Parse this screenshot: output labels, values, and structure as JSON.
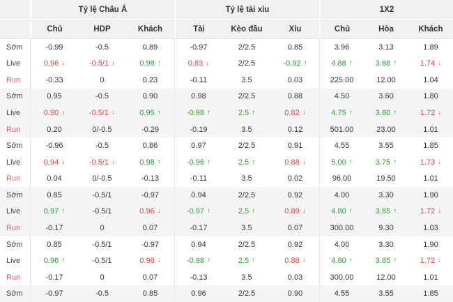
{
  "colors": {
    "red": "#e8453c",
    "green": "#28a42c",
    "header_bg": "#f0f0f0",
    "alt_row_bg": "#f5f5f5",
    "divider": "#e8e8e8",
    "text": "#333333",
    "run_label": "#e06363"
  },
  "header": {
    "groups": [
      {
        "label": "Tỷ lệ Châu Á",
        "cols": [
          "Chủ",
          "HDP",
          "Khách"
        ]
      },
      {
        "label": "Tỷ lệ tài xỉu",
        "cols": [
          "Tài",
          "Kèo đầu",
          "Xỉu"
        ]
      },
      {
        "label": "1X2",
        "cols": [
          "Chủ",
          "Hòa",
          "Khách"
        ]
      }
    ]
  },
  "rows": [
    {
      "label": "Sớm",
      "shaded": false,
      "cells": [
        {
          "t": "-0.99"
        },
        {
          "t": "-0.5"
        },
        {
          "t": "0.89"
        },
        {
          "t": "-0.97"
        },
        {
          "t": "2/2.5"
        },
        {
          "t": "0.85"
        },
        {
          "t": "3.96"
        },
        {
          "t": "3.13"
        },
        {
          "t": "1.89"
        }
      ]
    },
    {
      "label": "Live",
      "shaded": false,
      "cells": [
        {
          "t": "0.96",
          "c": "red",
          "a": "down"
        },
        {
          "t": "-0.5/1",
          "c": "red",
          "a": "down"
        },
        {
          "t": "0.98",
          "c": "green",
          "a": "up"
        },
        {
          "t": "0.83",
          "c": "red",
          "a": "down"
        },
        {
          "t": "2/2.5"
        },
        {
          "t": "-0.92",
          "c": "green",
          "a": "up"
        },
        {
          "t": "4.88",
          "c": "green",
          "a": "up"
        },
        {
          "t": "3.68",
          "c": "green",
          "a": "up"
        },
        {
          "t": "1.74",
          "c": "red",
          "a": "down"
        }
      ]
    },
    {
      "label": "Run",
      "shaded": false,
      "cells": [
        {
          "t": "-0.33"
        },
        {
          "t": "0"
        },
        {
          "t": "0.23"
        },
        {
          "t": "-0.11"
        },
        {
          "t": "3.5"
        },
        {
          "t": "0.03"
        },
        {
          "t": "225.00"
        },
        {
          "t": "12.00"
        },
        {
          "t": "1.04"
        }
      ]
    },
    {
      "label": "Sớm",
      "shaded": true,
      "cells": [
        {
          "t": "0.95"
        },
        {
          "t": "-0.5"
        },
        {
          "t": "0.90"
        },
        {
          "t": "0.98"
        },
        {
          "t": "2/2.5"
        },
        {
          "t": "0.88"
        },
        {
          "t": "4.50"
        },
        {
          "t": "3.60"
        },
        {
          "t": "1.80"
        }
      ]
    },
    {
      "label": "Live",
      "shaded": true,
      "cells": [
        {
          "t": "0.90",
          "c": "red",
          "a": "down"
        },
        {
          "t": "-0.5/1",
          "c": "red",
          "a": "down"
        },
        {
          "t": "0.95",
          "c": "green",
          "a": "up"
        },
        {
          "t": "-0.98",
          "c": "green",
          "a": "up"
        },
        {
          "t": "2.5",
          "c": "green",
          "a": "up"
        },
        {
          "t": "0.82",
          "c": "red",
          "a": "down"
        },
        {
          "t": "4.75",
          "c": "green",
          "a": "up"
        },
        {
          "t": "3.80",
          "c": "green",
          "a": "up"
        },
        {
          "t": "1.72",
          "c": "red",
          "a": "down"
        }
      ]
    },
    {
      "label": "Run",
      "shaded": true,
      "cells": [
        {
          "t": "0.20"
        },
        {
          "t": "0/-0.5"
        },
        {
          "t": "-0.29"
        },
        {
          "t": "-0.19"
        },
        {
          "t": "3.5"
        },
        {
          "t": "0.12"
        },
        {
          "t": "501.00"
        },
        {
          "t": "23.00"
        },
        {
          "t": "1.01"
        }
      ]
    },
    {
      "label": "Sớm",
      "shaded": false,
      "cells": [
        {
          "t": "-0.96"
        },
        {
          "t": "-0.5"
        },
        {
          "t": "0.86"
        },
        {
          "t": "0.97"
        },
        {
          "t": "2/2.5"
        },
        {
          "t": "0.91"
        },
        {
          "t": "4.55"
        },
        {
          "t": "3.55"
        },
        {
          "t": "1.85"
        }
      ]
    },
    {
      "label": "Live",
      "shaded": false,
      "cells": [
        {
          "t": "0.94",
          "c": "red",
          "a": "down"
        },
        {
          "t": "-0.5/1",
          "c": "red",
          "a": "down"
        },
        {
          "t": "0.98",
          "c": "green",
          "a": "up"
        },
        {
          "t": "-0.96",
          "c": "green",
          "a": "up"
        },
        {
          "t": "2.5",
          "c": "green",
          "a": "up"
        },
        {
          "t": "0.88",
          "c": "red",
          "a": "down"
        },
        {
          "t": "5.00",
          "c": "green",
          "a": "up"
        },
        {
          "t": "3.75",
          "c": "green",
          "a": "up"
        },
        {
          "t": "1.73",
          "c": "red",
          "a": "down"
        }
      ]
    },
    {
      "label": "Run",
      "shaded": false,
      "cells": [
        {
          "t": "0.04"
        },
        {
          "t": "0/-0.5"
        },
        {
          "t": "-0.13"
        },
        {
          "t": "-0.11"
        },
        {
          "t": "3.5"
        },
        {
          "t": "0.02"
        },
        {
          "t": "96.00"
        },
        {
          "t": "19.50"
        },
        {
          "t": "1.01"
        }
      ]
    },
    {
      "label": "Sớm",
      "shaded": true,
      "cells": [
        {
          "t": "0.85"
        },
        {
          "t": "-0.5/1"
        },
        {
          "t": "-0.97"
        },
        {
          "t": "0.94"
        },
        {
          "t": "2/2.5"
        },
        {
          "t": "0.92"
        },
        {
          "t": "4.00"
        },
        {
          "t": "3.30"
        },
        {
          "t": "1.90"
        }
      ]
    },
    {
      "label": "Live",
      "shaded": true,
      "cells": [
        {
          "t": "0.97",
          "c": "green",
          "a": "up"
        },
        {
          "t": "-0.5/1"
        },
        {
          "t": "0.96",
          "c": "red",
          "a": "down"
        },
        {
          "t": "-0.97",
          "c": "green",
          "a": "up"
        },
        {
          "t": "2.5",
          "c": "green",
          "a": "up"
        },
        {
          "t": "0.89",
          "c": "red",
          "a": "down"
        },
        {
          "t": "4.80",
          "c": "green",
          "a": "up"
        },
        {
          "t": "3.85",
          "c": "green",
          "a": "up"
        },
        {
          "t": "1.72",
          "c": "red",
          "a": "down"
        }
      ]
    },
    {
      "label": "Run",
      "shaded": true,
      "cells": [
        {
          "t": "-0.17"
        },
        {
          "t": "0"
        },
        {
          "t": "0.07"
        },
        {
          "t": "-0.17"
        },
        {
          "t": "3.5"
        },
        {
          "t": "0.07"
        },
        {
          "t": "300.00"
        },
        {
          "t": "9.30"
        },
        {
          "t": "1.03"
        }
      ]
    },
    {
      "label": "Sớm",
      "shaded": false,
      "cells": [
        {
          "t": "0.85"
        },
        {
          "t": "-0.5/1"
        },
        {
          "t": "-0.97"
        },
        {
          "t": "0.94"
        },
        {
          "t": "2/2.5"
        },
        {
          "t": "0.92"
        },
        {
          "t": "4.00"
        },
        {
          "t": "3.30"
        },
        {
          "t": "1.90"
        }
      ]
    },
    {
      "label": "Live",
      "shaded": false,
      "cells": [
        {
          "t": "0.96",
          "c": "green",
          "a": "up"
        },
        {
          "t": "-0.5/1"
        },
        {
          "t": "0.98",
          "c": "red",
          "a": "down"
        },
        {
          "t": "-0.98",
          "c": "green",
          "a": "up"
        },
        {
          "t": "2.5",
          "c": "green",
          "a": "up"
        },
        {
          "t": "0.88",
          "c": "red",
          "a": "down"
        },
        {
          "t": "4.80",
          "c": "green",
          "a": "up"
        },
        {
          "t": "3.85",
          "c": "green",
          "a": "up"
        },
        {
          "t": "1.72",
          "c": "red",
          "a": "down"
        }
      ]
    },
    {
      "label": "Run",
      "shaded": false,
      "cells": [
        {
          "t": "-0.17"
        },
        {
          "t": "0"
        },
        {
          "t": "0.07"
        },
        {
          "t": "-0.13"
        },
        {
          "t": "3.5"
        },
        {
          "t": "0.03"
        },
        {
          "t": "300.00"
        },
        {
          "t": "12.00"
        },
        {
          "t": "1.01"
        }
      ]
    },
    {
      "label": "Sớm",
      "shaded": true,
      "cells": [
        {
          "t": "-0.97"
        },
        {
          "t": "-0.5"
        },
        {
          "t": "0.85"
        },
        {
          "t": "0.96"
        },
        {
          "t": "2/2.5"
        },
        {
          "t": "0.90"
        },
        {
          "t": "4.55"
        },
        {
          "t": "3.55"
        },
        {
          "t": "1.85"
        }
      ]
    }
  ]
}
